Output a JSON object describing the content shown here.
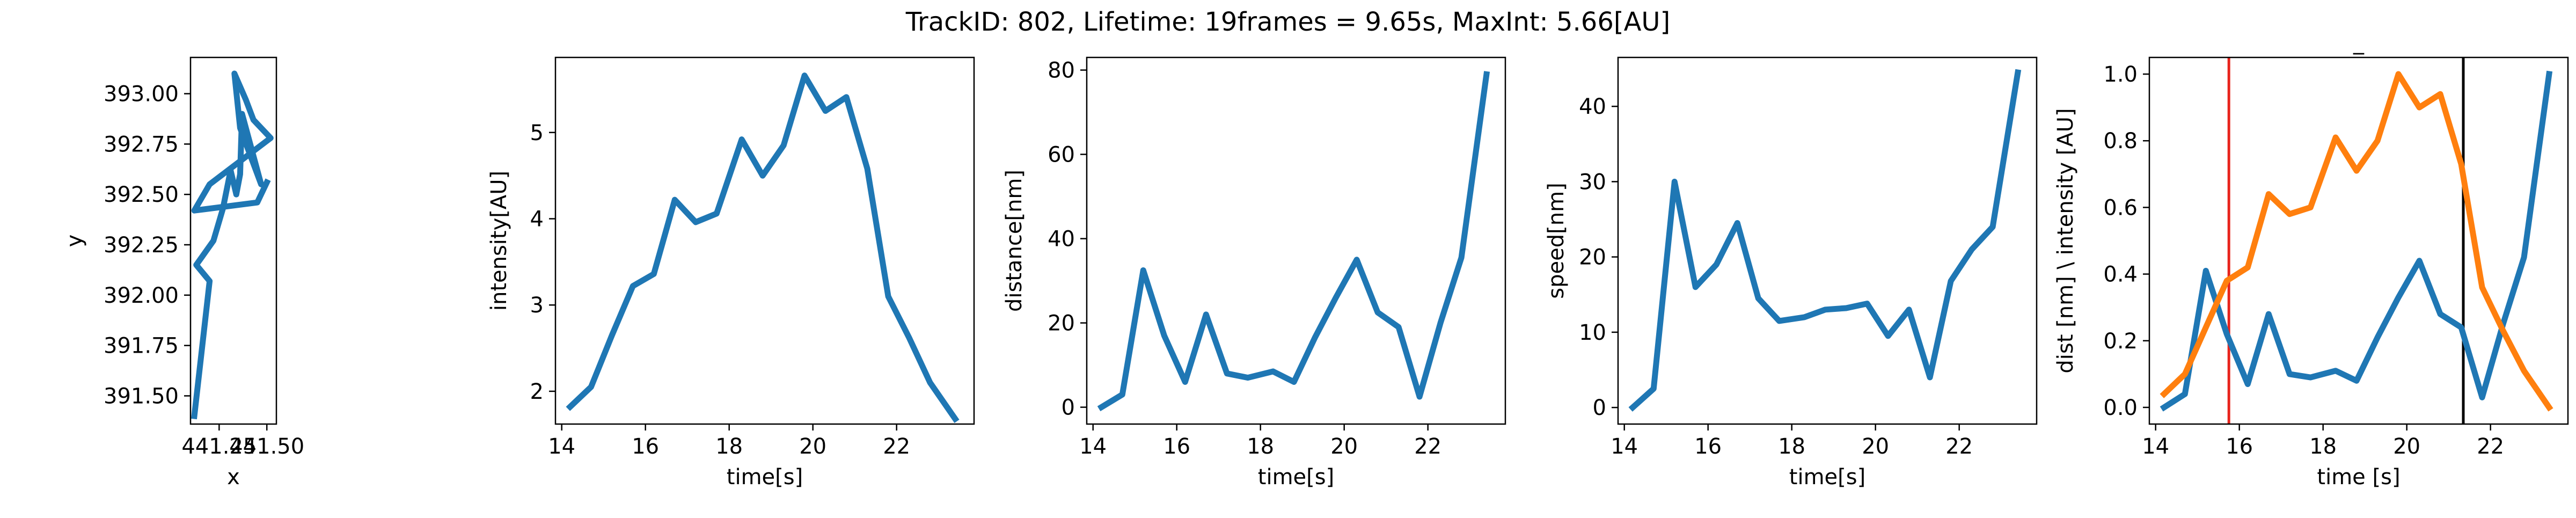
{
  "figure": {
    "suptitle": "TrackID: 802, Lifetime: 19frames = 9.65s, MaxInt: 5.66[AU]"
  },
  "chart_data": [
    {
      "id": "trajectory",
      "type": "line",
      "title": "",
      "xlabel": "x",
      "ylabel": "y",
      "xlim": [
        441.1,
        441.55
      ],
      "ylim": [
        391.36,
        393.18
      ],
      "xticks": [
        441.25,
        441.5
      ],
      "xtick_labels": [
        "441.25",
        "441.50"
      ],
      "yticks": [
        391.5,
        391.75,
        392.0,
        392.25,
        392.5,
        392.75,
        393.0
      ],
      "ytick_labels": [
        "391.50",
        "391.75",
        "392.00",
        "392.25",
        "392.50",
        "392.75",
        "393.00"
      ],
      "grid": false,
      "series": [
        {
          "color": "#1f77b4",
          "x": [
            441.12,
            441.2,
            441.13,
            441.22,
            441.27,
            441.31,
            441.34,
            441.36,
            441.37,
            441.47,
            441.36,
            441.33,
            441.39,
            441.43,
            441.52,
            441.2,
            441.12,
            441.45,
            441.5
          ],
          "y": [
            391.4,
            392.07,
            392.15,
            392.27,
            392.43,
            392.62,
            392.5,
            392.6,
            392.9,
            392.55,
            392.83,
            393.1,
            392.97,
            392.87,
            392.78,
            392.55,
            392.42,
            392.46,
            392.56
          ]
        }
      ]
    },
    {
      "id": "intensity",
      "type": "line",
      "title": "",
      "xlabel": "time[s]",
      "ylabel": "intensity[AU]",
      "xlim": [
        13.85,
        23.85
      ],
      "ylim": [
        1.62,
        5.87
      ],
      "xticks": [
        14,
        16,
        18,
        20,
        22
      ],
      "xtick_labels": [
        "14",
        "16",
        "18",
        "20",
        "22"
      ],
      "yticks": [
        2,
        3,
        4,
        5
      ],
      "ytick_labels": [
        "2",
        "3",
        "4",
        "5"
      ],
      "grid": false,
      "series": [
        {
          "color": "#1f77b4",
          "x": [
            14.2,
            14.7,
            15.2,
            15.7,
            16.2,
            16.7,
            17.2,
            17.7,
            18.3,
            18.8,
            19.3,
            19.8,
            20.3,
            20.8,
            21.3,
            21.8,
            22.3,
            22.8,
            23.4
          ],
          "y": [
            1.82,
            2.05,
            2.65,
            3.22,
            3.36,
            4.22,
            3.96,
            4.06,
            4.92,
            4.5,
            4.85,
            5.66,
            5.25,
            5.41,
            4.58,
            3.1,
            2.62,
            2.1,
            1.68
          ]
        }
      ]
    },
    {
      "id": "distance",
      "type": "line",
      "title": "",
      "xlabel": "time[s]",
      "ylabel": "distance[nm]",
      "xlim": [
        13.85,
        23.85
      ],
      "ylim": [
        -4,
        83
      ],
      "xticks": [
        14,
        16,
        18,
        20,
        22
      ],
      "xtick_labels": [
        "14",
        "16",
        "18",
        "20",
        "22"
      ],
      "yticks": [
        0,
        20,
        40,
        60,
        80
      ],
      "ytick_labels": [
        "0",
        "20",
        "40",
        "60",
        "80"
      ],
      "grid": false,
      "series": [
        {
          "color": "#1f77b4",
          "x": [
            14.2,
            14.7,
            15.2,
            15.7,
            16.2,
            16.7,
            17.2,
            17.7,
            18.3,
            18.8,
            19.3,
            19.8,
            20.3,
            20.8,
            21.3,
            21.8,
            22.3,
            22.8,
            23.4
          ],
          "y": [
            0,
            3,
            32.5,
            17,
            6,
            22,
            8,
            7,
            8.5,
            6,
            16.5,
            26,
            35,
            22.5,
            19,
            2.5,
            20,
            35.5,
            79
          ]
        }
      ]
    },
    {
      "id": "speed",
      "type": "line",
      "title": "",
      "xlabel": "time[s]",
      "ylabel": "speed[nm]",
      "xlim": [
        13.85,
        23.85
      ],
      "ylim": [
        -2.2,
        46.5
      ],
      "xticks": [
        14,
        16,
        18,
        20,
        22
      ],
      "xtick_labels": [
        "14",
        "16",
        "18",
        "20",
        "22"
      ],
      "yticks": [
        0,
        10,
        20,
        30,
        40
      ],
      "ytick_labels": [
        "0",
        "10",
        "20",
        "30",
        "40"
      ],
      "grid": false,
      "series": [
        {
          "color": "#1f77b4",
          "x": [
            14.2,
            14.7,
            15.2,
            15.7,
            16.2,
            16.7,
            17.2,
            17.7,
            18.3,
            18.8,
            19.3,
            19.8,
            20.3,
            20.8,
            21.3,
            21.8,
            22.3,
            22.8,
            23.4
          ],
          "y": [
            0,
            2.5,
            30,
            16,
            19,
            24.5,
            14.5,
            11.5,
            12,
            13,
            13.2,
            13.8,
            9.5,
            13,
            4,
            16.8,
            21,
            24,
            44.5
          ]
        }
      ]
    },
    {
      "id": "normalized",
      "type": "line",
      "title": "_",
      "xlabel": "time [s]",
      "ylabel": "dist [nm] \\ intensity [AU]",
      "xlim": [
        13.85,
        23.85
      ],
      "ylim": [
        -0.05,
        1.05
      ],
      "xticks": [
        14,
        16,
        18,
        20,
        22
      ],
      "xtick_labels": [
        "14",
        "16",
        "18",
        "20",
        "22"
      ],
      "yticks": [
        0.0,
        0.2,
        0.4,
        0.6,
        0.8,
        1.0
      ],
      "ytick_labels": [
        "0.0",
        "0.2",
        "0.4",
        "0.6",
        "0.8",
        "1.0"
      ],
      "grid": false,
      "vlines": [
        {
          "x": 15.75,
          "color": "#e8241d"
        },
        {
          "x": 21.35,
          "color": "#000000"
        }
      ],
      "series": [
        {
          "color": "#1f77b4",
          "x": [
            14.2,
            14.7,
            15.2,
            15.7,
            16.2,
            16.7,
            17.2,
            17.7,
            18.3,
            18.8,
            19.3,
            19.8,
            20.3,
            20.8,
            21.3,
            21.8,
            22.3,
            22.8,
            23.4
          ],
          "y": [
            0.0,
            0.04,
            0.41,
            0.22,
            0.07,
            0.28,
            0.1,
            0.09,
            0.11,
            0.08,
            0.21,
            0.33,
            0.44,
            0.28,
            0.24,
            0.03,
            0.25,
            0.45,
            1.0
          ]
        },
        {
          "color": "#ff7f0e",
          "x": [
            14.2,
            14.7,
            15.2,
            15.7,
            16.2,
            16.7,
            17.2,
            17.7,
            18.3,
            18.8,
            19.3,
            19.8,
            20.3,
            20.8,
            21.3,
            21.8,
            22.3,
            22.8,
            23.4
          ],
          "y": [
            0.04,
            0.1,
            0.24,
            0.38,
            0.42,
            0.64,
            0.58,
            0.6,
            0.81,
            0.71,
            0.8,
            1.0,
            0.9,
            0.94,
            0.73,
            0.36,
            0.23,
            0.11,
            0.0
          ]
        }
      ]
    }
  ]
}
